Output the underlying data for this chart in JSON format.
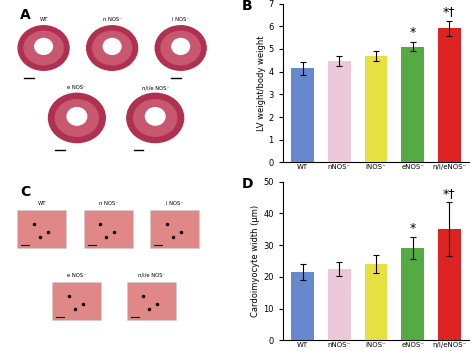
{
  "panel_B": {
    "categories": [
      "WT",
      "nNOS⁻",
      "iNOS⁻",
      "eNOS⁻",
      "n/i/eNOS⁻"
    ],
    "values": [
      4.15,
      4.45,
      4.7,
      5.1,
      5.9
    ],
    "errors": [
      0.28,
      0.22,
      0.22,
      0.2,
      0.32
    ],
    "colors": [
      "#6688cc",
      "#ecc8d8",
      "#e8e040",
      "#55aa44",
      "#dd2222"
    ],
    "ylabel": "LV weight/body weight",
    "ylim": [
      0,
      7
    ],
    "yticks": [
      0,
      1,
      2,
      3,
      4,
      5,
      6,
      7
    ],
    "label": "B"
  },
  "panel_D": {
    "categories": [
      "WT",
      "nNOS⁻",
      "iNOS⁻",
      "eNOS⁻",
      "n/i/eNOS⁻"
    ],
    "values": [
      21.5,
      22.5,
      24.0,
      29.0,
      35.0
    ],
    "errors": [
      2.5,
      2.2,
      2.8,
      3.5,
      8.5
    ],
    "colors": [
      "#6688cc",
      "#ecc8d8",
      "#e8e040",
      "#55aa44",
      "#dd2222"
    ],
    "ylabel": "Cardoimyocyte width (μm)",
    "ylim": [
      0,
      50
    ],
    "yticks": [
      0,
      10,
      20,
      30,
      40,
      50
    ],
    "label": "D"
  },
  "xtick_labels": [
    "WT",
    "nNOS⁻",
    "iNOS⁻",
    "eNOS⁻",
    "n/i/eNOS⁻"
  ],
  "panel_A_label": "A",
  "panel_C_label": "C",
  "heart_top_labels": [
    "WT",
    "n NOS⁻",
    "i NOS⁻"
  ],
  "heart_bot_labels": [
    "e NOS⁻",
    "n/i/e NOS⁻"
  ],
  "muscle_top_labels": [
    "WT",
    "n NOS⁻",
    "i NOS⁻"
  ],
  "muscle_bot_labels": [
    "e NOS⁻",
    "n/i/e NOS⁻"
  ],
  "heart_color_outer": "#c04060",
  "heart_color_inner": "#e8a8b0",
  "muscle_color": "#e09090",
  "bg_white": "#ffffff",
  "bg_panel": "#f8f8f8"
}
